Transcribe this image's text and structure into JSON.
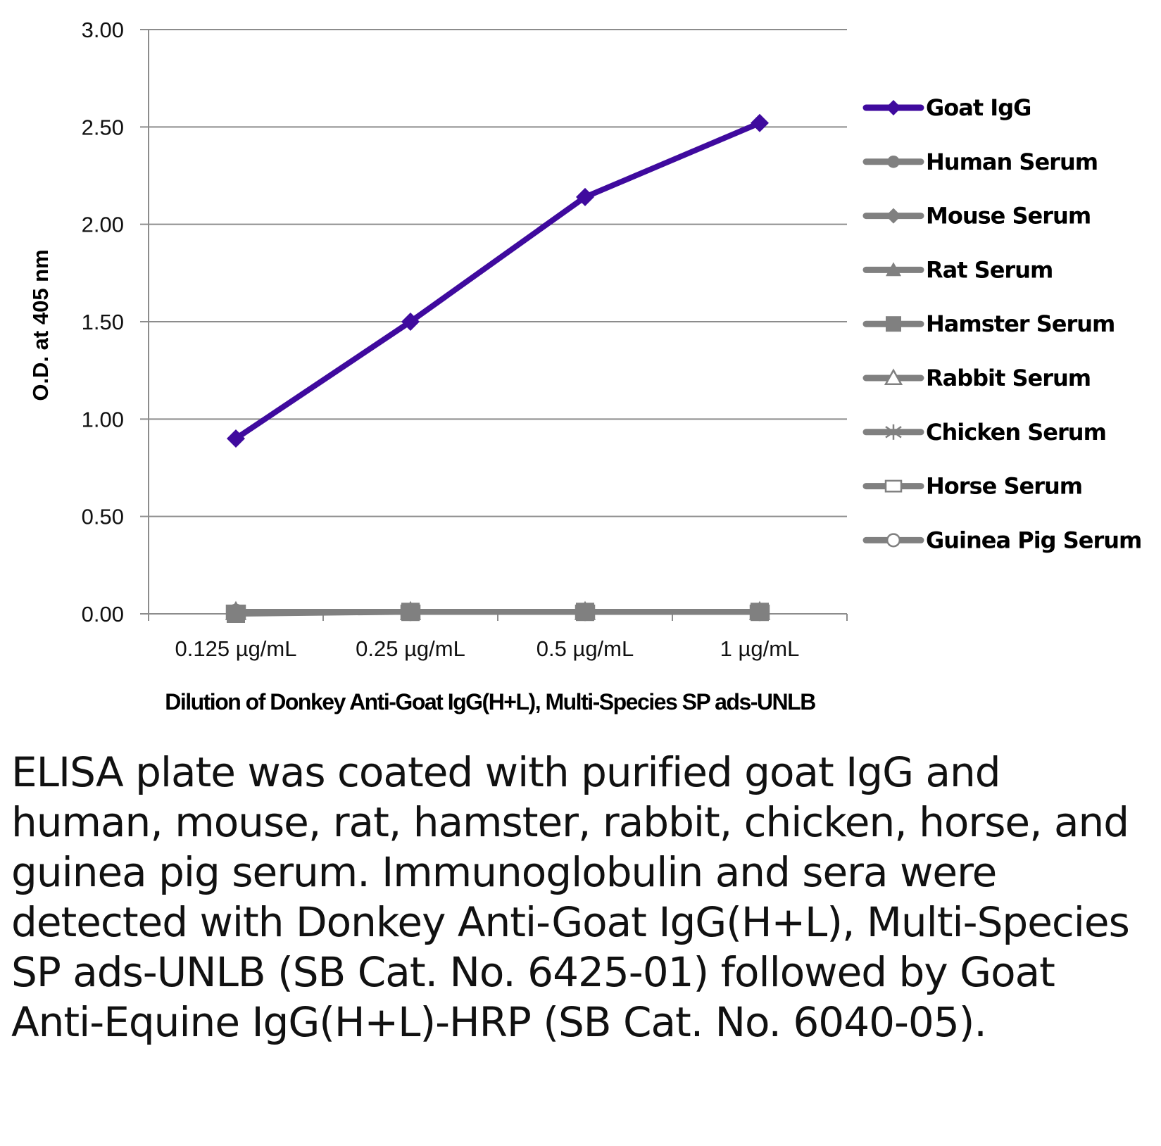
{
  "chart_data": {
    "type": "line",
    "ylabel": "O.D. at 405 nm",
    "xlabel": "Dilution of Donkey Anti-Goat IgG(H+L), Multi-Species SP ads-UNLB",
    "categories": [
      "0.125 µg/mL",
      "0.25 µg/mL",
      "0.5 µg/mL",
      "1 µg/mL"
    ],
    "ylim": [
      0,
      3
    ],
    "yticks": [
      "0.00",
      "0.50",
      "1.00",
      "1.50",
      "2.00",
      "2.50",
      "3.00"
    ],
    "grid": "horizontal",
    "legend_position": "right",
    "series": [
      {
        "name": "Goat IgG",
        "values": [
          0.9,
          1.5,
          2.14,
          2.52
        ],
        "color": "#3f0a9e",
        "marker": "diamond"
      },
      {
        "name": "Human Serum",
        "values": [
          0.01,
          0.01,
          0.01,
          0.01
        ],
        "color": "#808080",
        "marker": "circle"
      },
      {
        "name": "Mouse Serum",
        "values": [
          0.01,
          0.01,
          0.01,
          0.01
        ],
        "color": "#808080",
        "marker": "diamond"
      },
      {
        "name": "Rat Serum",
        "values": [
          0.01,
          0.01,
          0.01,
          0.01
        ],
        "color": "#808080",
        "marker": "triangle"
      },
      {
        "name": "Hamster Serum",
        "values": [
          0.0,
          0.01,
          0.01,
          0.01
        ],
        "color": "#808080",
        "marker": "square"
      },
      {
        "name": "Rabbit Serum",
        "values": [
          0.01,
          0.01,
          0.01,
          0.01
        ],
        "color": "#808080",
        "marker": "triangle-open"
      },
      {
        "name": "Chicken Serum",
        "values": [
          0.01,
          0.01,
          0.01,
          0.01
        ],
        "color": "#808080",
        "marker": "asterisk"
      },
      {
        "name": "Horse Serum",
        "values": [
          0.01,
          0.01,
          0.01,
          0.01
        ],
        "color": "#808080",
        "marker": "square-open"
      },
      {
        "name": "Guinea Pig Serum",
        "values": [
          0.01,
          0.01,
          0.01,
          0.01
        ],
        "color": "#808080",
        "marker": "circle-open"
      }
    ]
  },
  "caption": "ELISA plate was coated with purified goat IgG and human, mouse, rat, hamster, rabbit, chicken, horse, and guinea pig serum. Immunoglobulin and sera were detected with Donkey Anti-Goat IgG(H+L), Multi-Species SP ads-UNLB (SB Cat. No. 6425-01) followed by Goat Anti-Equine IgG(H+L)-HRP (SB Cat. No. 6040-05)."
}
